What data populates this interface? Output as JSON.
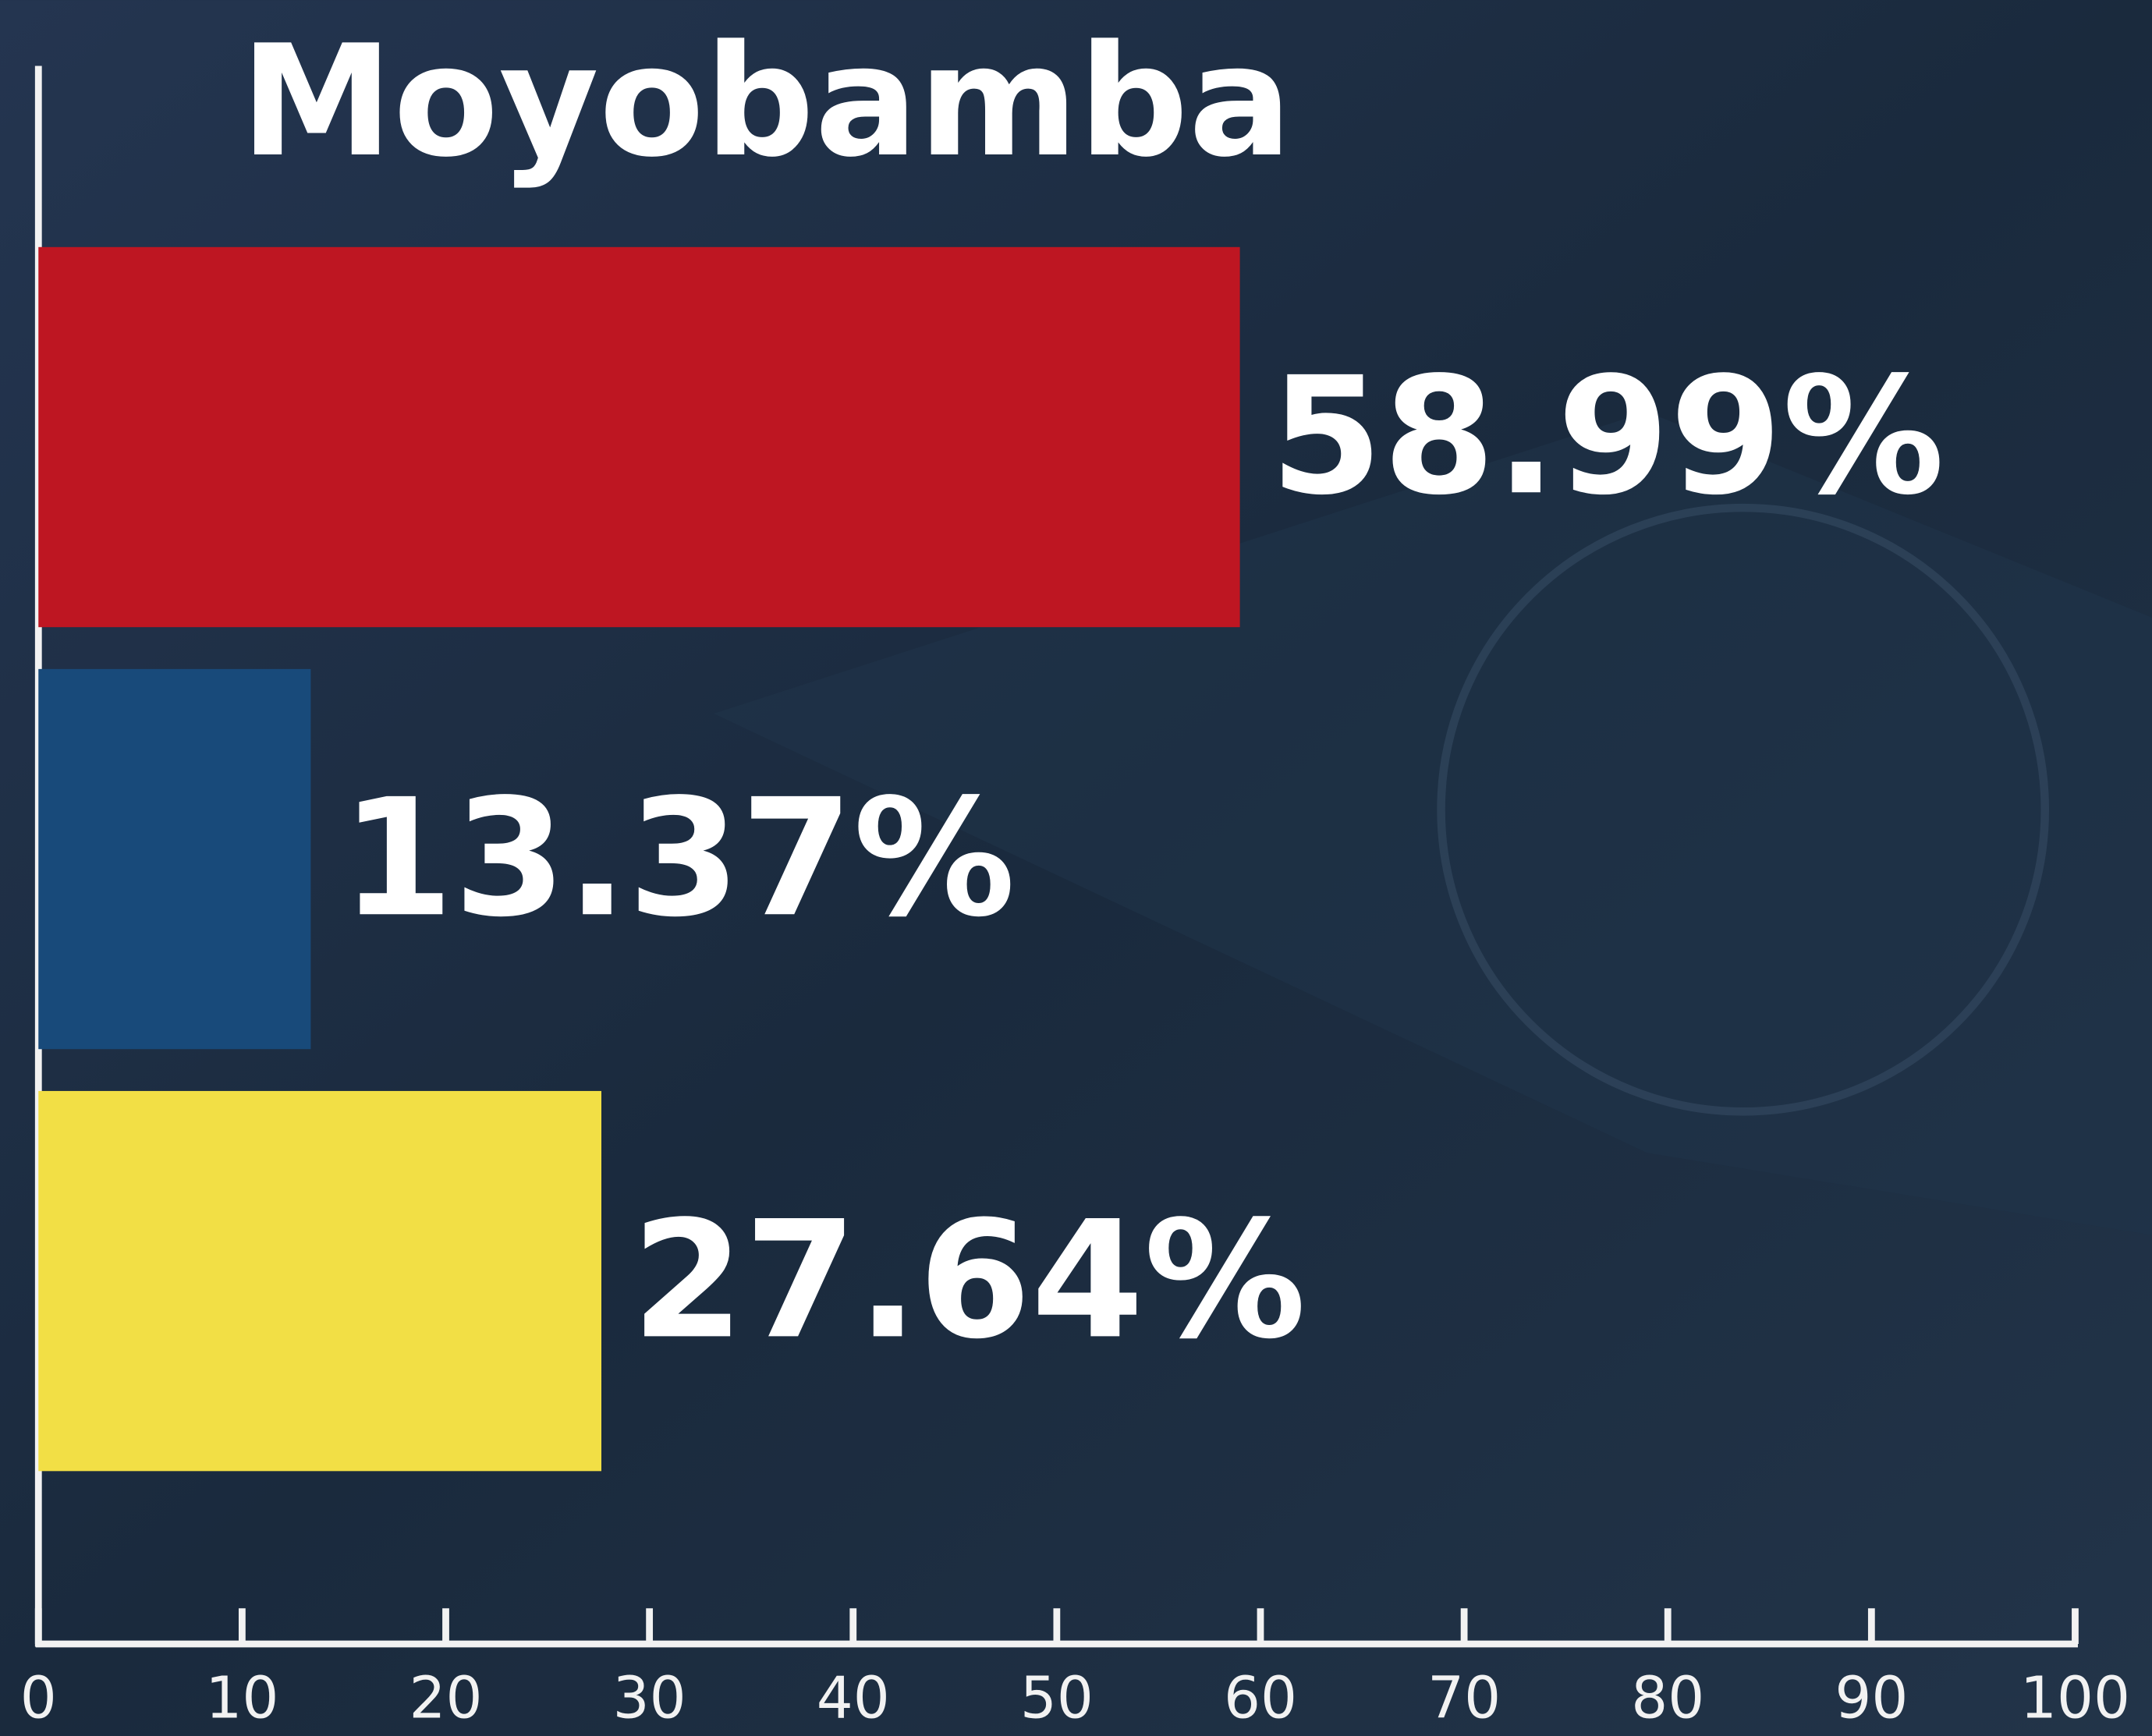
{
  "chart_data": {
    "type": "bar",
    "orientation": "horizontal",
    "title": "Moyobamba",
    "values": [
      58.99,
      13.37,
      27.64
    ],
    "value_labels": [
      "58.99%",
      "13.37%",
      "27.64%"
    ],
    "colors": [
      "#be1622",
      "#184a7a",
      "#f2df45"
    ],
    "xlim": [
      0,
      100
    ],
    "xticks": [
      0,
      10,
      20,
      30,
      40,
      50,
      60,
      70,
      80,
      90,
      100
    ]
  }
}
